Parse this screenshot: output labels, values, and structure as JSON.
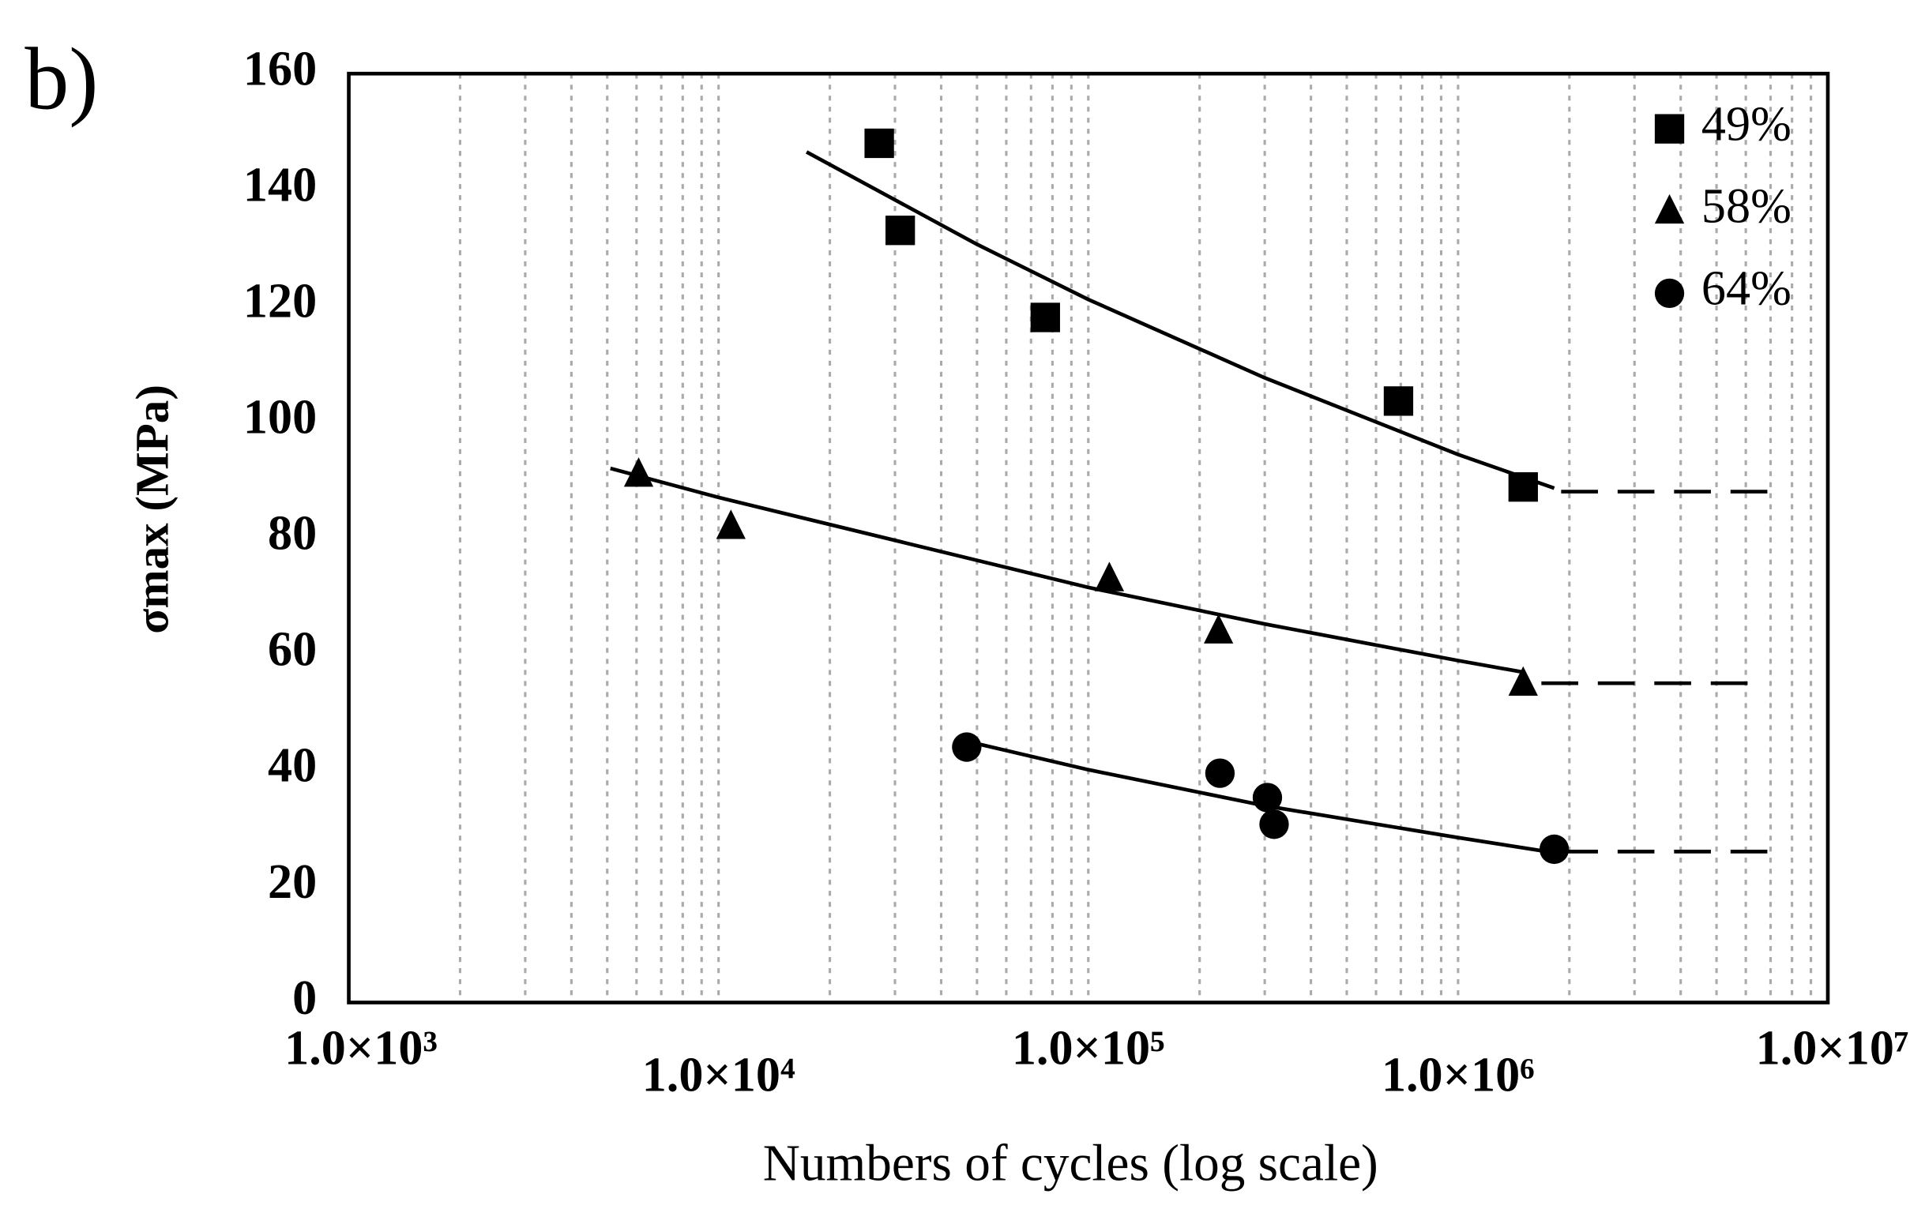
{
  "chart_data": {
    "type": "scatter",
    "panel_label": "b)",
    "x_label": "Numbers of cycles (log scale)",
    "y_label": "σmax (MPa)",
    "xscale": "log",
    "xlim": [
      1000,
      10000000
    ],
    "xticks": [
      {
        "value": 1000,
        "label": "1.0×10³"
      },
      {
        "value": 10000,
        "label": "1.0×10⁴"
      },
      {
        "value": 100000,
        "label": "1.0×10⁵"
      },
      {
        "value": 1000000,
        "label": "1.0×10⁶"
      },
      {
        "value": 10000000,
        "label": "1.0×10⁷"
      }
    ],
    "xgrid": [
      2000,
      3000,
      4000,
      5000,
      6000,
      7000,
      8000,
      9000,
      10000,
      20000,
      30000,
      40000,
      50000,
      60000,
      70000,
      80000,
      90000,
      100000,
      200000,
      300000,
      400000,
      500000,
      600000,
      700000,
      800000,
      900000,
      1000000,
      2000000,
      3000000,
      4000000,
      5000000,
      6000000,
      7000000,
      8000000,
      9000000
    ],
    "ylim": [
      0,
      160
    ],
    "yticks": [
      0,
      20,
      40,
      60,
      80,
      100,
      120,
      140,
      160
    ],
    "legend": "top-right",
    "series": [
      {
        "name": "49%",
        "marker": "square",
        "color": "#000000",
        "x": [
          27200,
          31000,
          76500,
          690000,
          1500000
        ],
        "values": [
          148,
          133,
          118,
          103.6,
          88.8
        ],
        "fit": {
          "x": [
            17300,
            50000,
            100000,
            300000,
            1000000,
            1820000
          ],
          "y": [
            146.5,
            130.6,
            121.1,
            107.6,
            94.4,
            88.6
          ]
        },
        "endurance": {
          "x": [
            1900000,
            7000000
          ],
          "y": 88
        }
      },
      {
        "name": "58%",
        "marker": "triangle",
        "color": "#000000",
        "x": [
          6080,
          10800,
          114000,
          225000,
          1500000
        ],
        "values": [
          91,
          82,
          73,
          64,
          55
        ],
        "fit": {
          "x": [
            5100,
            10000,
            100000,
            300000,
            1000000,
            1500000
          ],
          "y": [
            92,
            87,
            71.5,
            65.2,
            58.9,
            56.9
          ]
        },
        "endurance": {
          "x": [
            1680000,
            6200000
          ],
          "y": 55
        }
      },
      {
        "name": "64%",
        "marker": "circle",
        "color": "#000000",
        "x": [
          46900,
          227000,
          305000,
          318000,
          1820000
        ],
        "values": [
          44,
          39.5,
          35.3,
          30.7,
          26.4
        ],
        "fit": {
          "x": [
            46900,
            100000,
            300000,
            1000000,
            1820000
          ],
          "y": [
            45,
            40.1,
            33.9,
            28.4,
            25.8
          ]
        },
        "endurance": {
          "x": [
            1900000,
            7200000
          ],
          "y": 26
        }
      }
    ]
  }
}
